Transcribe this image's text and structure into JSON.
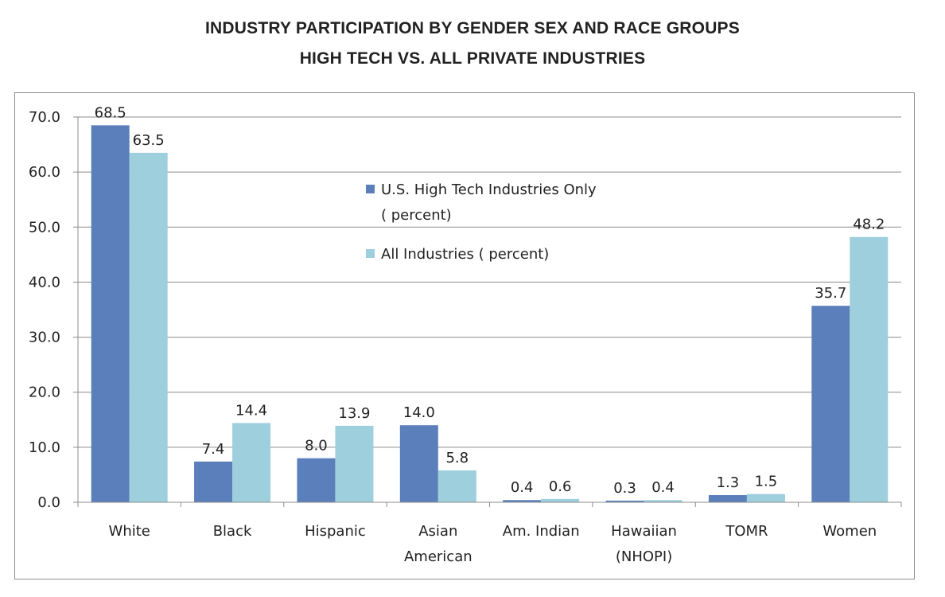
{
  "chart_data": {
    "type": "bar",
    "title": "INDUSTRY PARTICIPATION BY GENDER SEX AND RACE GROUPS",
    "subtitle": "HIGH TECH VS. ALL PRIVATE INDUSTRIES",
    "xlabel": "",
    "ylabel": "",
    "ylim": [
      0,
      70
    ],
    "yticks": [
      "0.0",
      "10.0",
      "20.0",
      "30.0",
      "40.0",
      "50.0",
      "60.0",
      "70.0"
    ],
    "grid": true,
    "legend_position": "center-top",
    "categories": [
      [
        "White"
      ],
      [
        "Black"
      ],
      [
        "Hispanic"
      ],
      [
        "Asian",
        "American"
      ],
      [
        "Am. Indian"
      ],
      [
        "Hawaiian",
        "(NHOPI)"
      ],
      [
        "TOMR"
      ],
      [
        "Women"
      ]
    ],
    "series": [
      {
        "name": "U.S. High Tech Industries Only ( percent)",
        "legend_lines": [
          "U.S. High Tech Industries Only",
          "( percent)"
        ],
        "color": "#5b7fba",
        "values": [
          68.5,
          7.4,
          8.0,
          14.0,
          0.4,
          0.3,
          1.3,
          35.7
        ],
        "labels": [
          "68.5",
          "7.4",
          "8.0",
          "14.0",
          "0.4",
          "0.3",
          "1.3",
          "35.7"
        ]
      },
      {
        "name": "All Industries ( percent)",
        "legend_lines": [
          "All Industries ( percent)"
        ],
        "color": "#9ecfdd",
        "values": [
          63.5,
          14.4,
          13.9,
          5.8,
          0.6,
          0.4,
          1.5,
          48.2
        ],
        "labels": [
          "63.5",
          "14.4",
          "13.9",
          "5.8",
          "0.6",
          "0.4",
          "1.5",
          "48.2"
        ]
      }
    ]
  }
}
